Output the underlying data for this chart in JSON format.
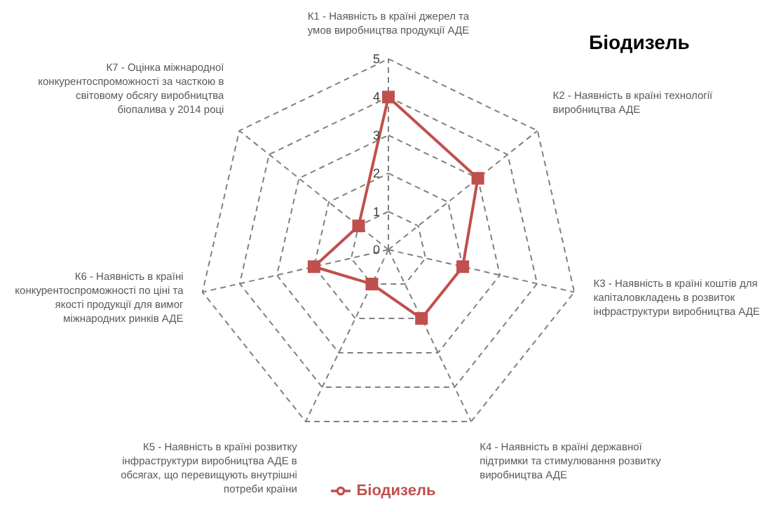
{
  "chart_data": {
    "type": "radar",
    "title": "Біодизель",
    "categories": [
      "К1 - Наявність в країні джерел та умов виробництва продукції АДЕ",
      "К2 - Наявність в країні технології виробництва АДЕ",
      "К3 - Наявність в країні коштів для капіталовкладень в розвиток інфраструктури виробництва АДЕ",
      "К4 - Наявність в країні державної підтримки та стимулювання розвитку виробництва АДЕ",
      "К5 - Наявність в країні розвитку інфраструктури виробництва АДЕ в обсягах, що перевищують внутрішні потреби країни",
      "К6 - Наявність в країні конкурентоспроможності по ціні та якості продукції для вимог міжнародних ринків АДЕ",
      "К7 - Оцінка міжнародної конкурентоспроможності за часткою в світовому обсягу виробництва біопалива у 2014 році"
    ],
    "series": [
      {
        "name": "Біодизель",
        "color": "#c0504d",
        "values": [
          4,
          3,
          2,
          2,
          1,
          2,
          1
        ]
      }
    ],
    "ylim": [
      0,
      5
    ],
    "yticks": [
      0,
      1,
      2,
      3,
      4,
      5
    ],
    "grid": true,
    "legend": "bottom",
    "marker": "square",
    "line_style": "solid"
  }
}
